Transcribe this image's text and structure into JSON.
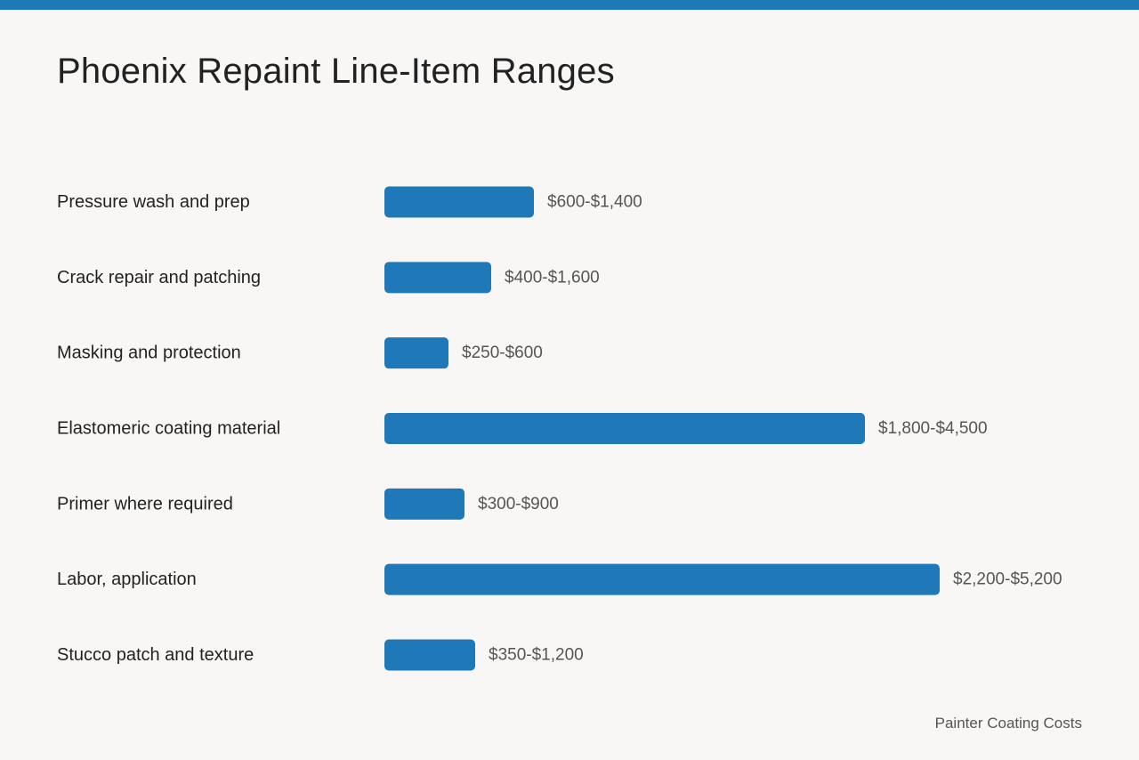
{
  "header": {
    "accent_color": "#1f78b8",
    "title": "Phoenix Repaint Line-Item Ranges"
  },
  "footer": {
    "source": "Painter Coating Costs"
  },
  "chart_data": {
    "type": "bar",
    "orientation": "horizontal",
    "title": "Phoenix Repaint Line-Item Ranges",
    "bar_color": "#1f78b8",
    "grid": false,
    "categories": [
      "Pressure wash and prep",
      "Crack repair and patching",
      "Masking and protection",
      "Elastomeric coating material",
      "Primer where required",
      "Labor, application",
      "Stucco patch and texture"
    ],
    "value_labels": [
      "$600-$1,400",
      "$400-$1,600",
      "$250-$600",
      "$1,800-$4,500",
      "$300-$900",
      "$2,200-$5,200",
      "$350-$1,200"
    ],
    "ranges": [
      [
        600,
        1400
      ],
      [
        400,
        1600
      ],
      [
        250,
        600
      ],
      [
        1800,
        4500
      ],
      [
        300,
        900
      ],
      [
        2200,
        5200
      ],
      [
        350,
        1200
      ]
    ],
    "values": [
      1400,
      1000,
      600,
      4500,
      750,
      5200,
      850
    ],
    "xlim": [
      0,
      5200
    ]
  }
}
